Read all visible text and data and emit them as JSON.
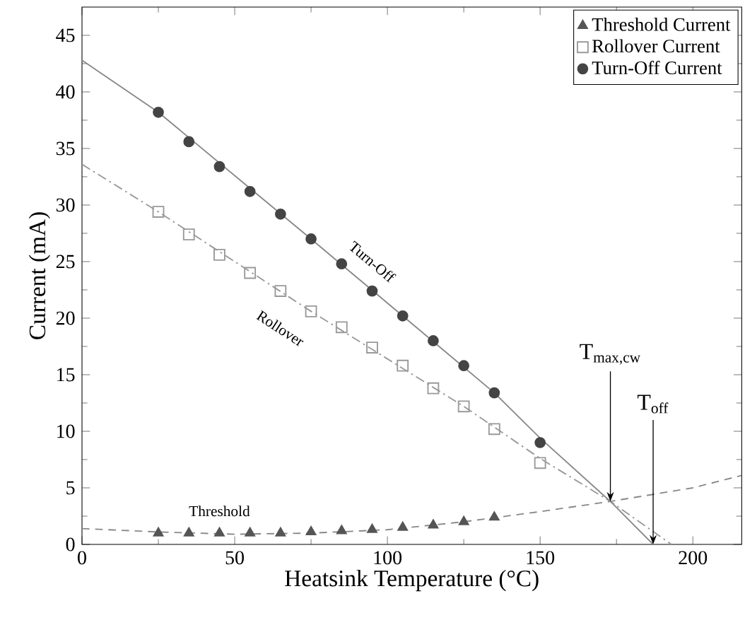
{
  "chart_data": {
    "type": "scatter",
    "xlabel": "Heatsink Temperature (°C)",
    "ylabel": "Current (mA)",
    "xlim": [
      0,
      216
    ],
    "ylim": [
      0,
      47.5
    ],
    "xticks": [
      0,
      50,
      100,
      150,
      200
    ],
    "yticks": [
      0,
      5,
      10,
      15,
      20,
      25,
      30,
      35,
      40,
      45
    ],
    "legend": "top right",
    "grid": false,
    "series": [
      {
        "name": "Threshold Current",
        "marker": "triangle",
        "color": "#555555",
        "x": [
          25,
          35,
          45,
          55,
          65,
          75,
          85,
          95,
          105,
          115,
          125,
          135
        ],
        "values": [
          1.0,
          1.0,
          1.0,
          1.0,
          1.0,
          1.1,
          1.2,
          1.3,
          1.5,
          1.7,
          2.0,
          2.4
        ]
      },
      {
        "name": "Rollover Current",
        "marker": "square",
        "color": "#999999",
        "x": [
          25,
          35,
          45,
          55,
          65,
          75,
          85,
          95,
          105,
          115,
          125,
          135,
          150
        ],
        "values": [
          29.4,
          27.4,
          25.6,
          24.0,
          22.4,
          20.6,
          19.2,
          17.4,
          15.8,
          13.8,
          12.2,
          10.2,
          7.2
        ]
      },
      {
        "name": "Turn-Off Current",
        "marker": "circle",
        "color": "#444444",
        "x": [
          25,
          35,
          45,
          55,
          65,
          75,
          85,
          95,
          105,
          115,
          125,
          135,
          150
        ],
        "values": [
          38.2,
          35.6,
          33.4,
          31.2,
          29.2,
          27.0,
          24.8,
          22.4,
          20.2,
          18.0,
          15.8,
          13.4,
          9.0
        ]
      },
      {
        "type": "line",
        "line_style": "dashed",
        "color": "#888888",
        "x": [
          0,
          25,
          50,
          75,
          100,
          125,
          150,
          173,
          200,
          216
        ],
        "values": [
          1.4,
          1.1,
          0.9,
          1.0,
          1.3,
          2.0,
          2.9,
          3.8,
          5.0,
          6.1
        ]
      },
      {
        "type": "line",
        "line_style": "dashdot",
        "color": "#999999",
        "x": [
          0,
          25,
          75,
          125,
          150,
          173,
          193
        ],
        "values": [
          33.6,
          29.4,
          20.6,
          12.2,
          7.6,
          3.8,
          0
        ]
      },
      {
        "type": "line",
        "line_style": "solid",
        "color": "#888888",
        "x": [
          0,
          25,
          75,
          135,
          150,
          173,
          187
        ],
        "values": [
          42.8,
          38.2,
          27.0,
          13.4,
          9.4,
          3.8,
          0
        ]
      }
    ],
    "annotations": [
      {
        "text": "Threshold",
        "x": 45,
        "y": 1.0
      },
      {
        "text": "Rollover",
        "x": 65,
        "y": 22.4
      },
      {
        "text": "Turn-Off",
        "x": 95,
        "y": 22.4
      },
      {
        "text": "T$_{max,cw}$",
        "x": 173,
        "y": 3.8
      },
      {
        "text": "T$_{off}$",
        "x": 187,
        "y": 0
      }
    ]
  }
}
